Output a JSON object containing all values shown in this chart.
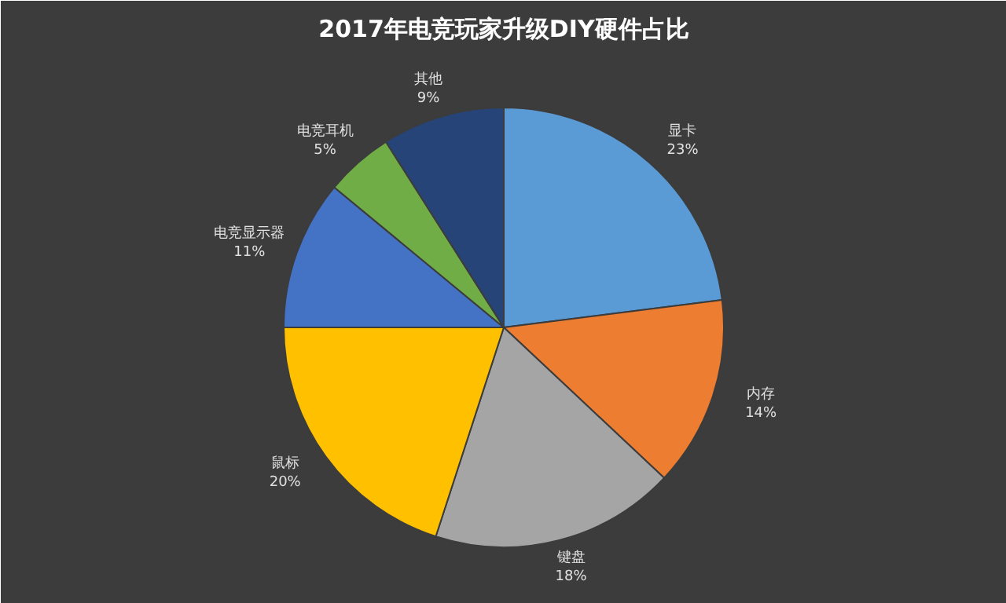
{
  "chart_data": {
    "type": "pie",
    "title": "2017年电竞玩家升级DIY硬件占比",
    "categories": [
      "显卡",
      "内存",
      "键盘",
      "鼠标",
      "电竞显示器",
      "电竞耳机",
      "其他"
    ],
    "values": [
      23,
      14,
      18,
      20,
      11,
      5,
      9
    ],
    "value_labels": [
      "23%",
      "14%",
      "18%",
      "20%",
      "11%",
      "5%",
      "9%"
    ],
    "colors": [
      "#5b9bd5",
      "#ed7d31",
      "#a5a5a5",
      "#ffc000",
      "#4472c4",
      "#70ad47",
      "#264478"
    ],
    "legend": false
  }
}
